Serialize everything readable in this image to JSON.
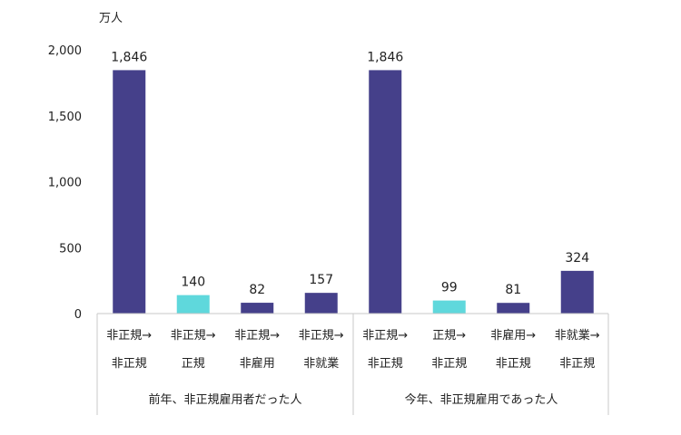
{
  "chart_data": {
    "type": "bar",
    "unit_label": "万人",
    "ylim": [
      0,
      2000
    ],
    "yticks": [
      0,
      500,
      1000,
      1500,
      2000
    ],
    "ytick_labels": [
      "0",
      "500",
      "1,000",
      "1,500",
      "2,000"
    ],
    "grid": false,
    "legend": "none",
    "groups": [
      {
        "label": "前年、非正規雇用者だった人",
        "categories": [
          {
            "line1": "非正規→",
            "line2": "非正規",
            "value": 1846,
            "value_label": "1,846",
            "color": "#45408a"
          },
          {
            "line1": "非正規→",
            "line2": "正規",
            "value": 140,
            "value_label": "140",
            "color": "#5fd8dc"
          },
          {
            "line1": "非正規→",
            "line2": "非雇用",
            "value": 82,
            "value_label": "82",
            "color": "#45408a"
          },
          {
            "line1": "非正規→",
            "line2": "非就業",
            "value": 157,
            "value_label": "157",
            "color": "#45408a"
          }
        ]
      },
      {
        "label": "今年、非正規雇用であった人",
        "categories": [
          {
            "line1": "非正規→",
            "line2": "非正規",
            "value": 1846,
            "value_label": "1,846",
            "color": "#45408a"
          },
          {
            "line1": "正規→",
            "line2": "非正規",
            "value": 99,
            "value_label": "99",
            "color": "#5fd8dc"
          },
          {
            "line1": "非雇用→",
            "line2": "非正規",
            "value": 81,
            "value_label": "81",
            "color": "#45408a"
          },
          {
            "line1": "非就業→",
            "line2": "非正規",
            "value": 324,
            "value_label": "324",
            "color": "#45408a"
          }
        ]
      }
    ]
  }
}
